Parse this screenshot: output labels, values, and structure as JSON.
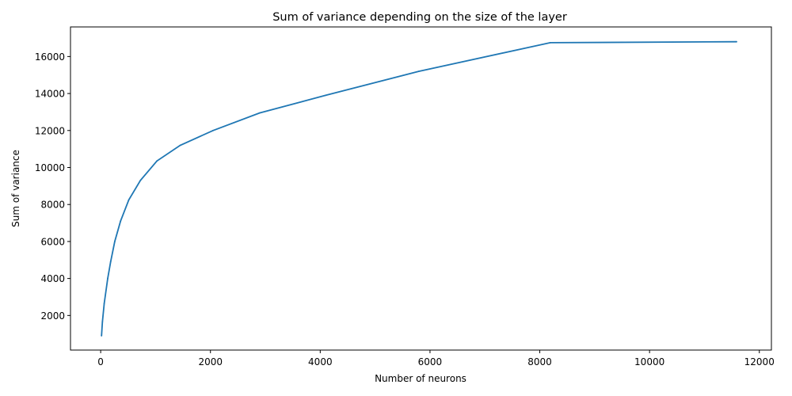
{
  "chart_data": {
    "type": "line",
    "title": "Sum of variance depending on the size of the layer",
    "xlabel": "Number of neurons",
    "ylabel": "Sum of variance",
    "xlim": [
      -550,
      12220
    ],
    "ylim": [
      130,
      17600
    ],
    "xticks": [
      0,
      2000,
      4000,
      6000,
      8000,
      10000,
      12000
    ],
    "yticks": [
      2000,
      4000,
      6000,
      8000,
      10000,
      12000,
      14000,
      16000
    ],
    "grid": false,
    "line_color": "#1f77b4",
    "series": [
      {
        "x": [
          16,
          32,
          64,
          128,
          181,
          256,
          362,
          512,
          724,
          1024,
          1448,
          2048,
          2896,
          4096,
          5793,
          8192,
          11585
        ],
        "y": [
          900,
          1650,
          2650,
          4000,
          4900,
          6000,
          7100,
          8250,
          9300,
          10350,
          11200,
          12000,
          12950,
          13900,
          15200,
          16750,
          16800
        ]
      }
    ]
  }
}
